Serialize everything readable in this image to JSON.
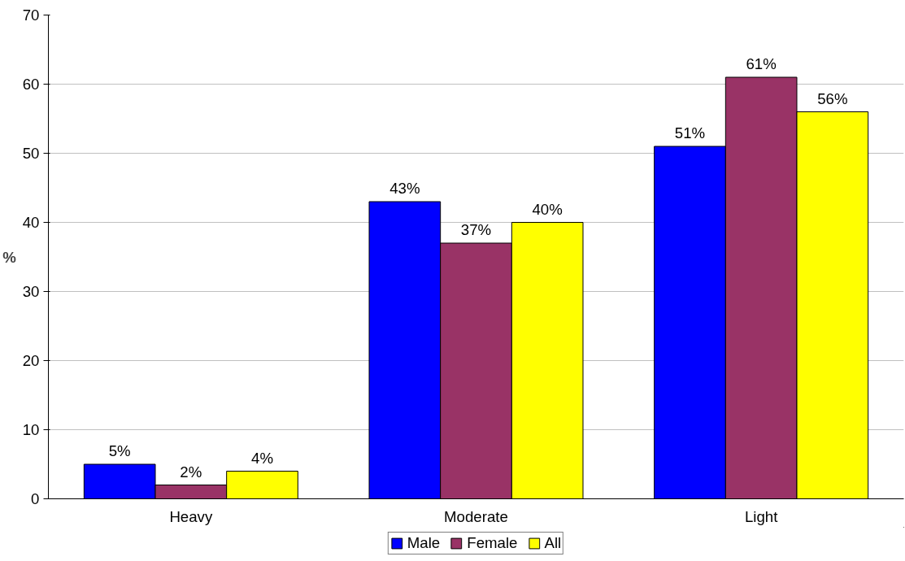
{
  "chart_data": {
    "type": "bar",
    "ylabel": "%",
    "categories": [
      "Heavy",
      "Moderate",
      "Light"
    ],
    "series": [
      {
        "name": "Male",
        "color": "#0000ff",
        "values": [
          5,
          43,
          51
        ],
        "value_labels": [
          "5%",
          "43%",
          "51%"
        ]
      },
      {
        "name": "Female",
        "color": "#993366",
        "values": [
          2,
          37,
          61
        ],
        "value_labels": [
          "2%",
          "37%",
          "61%"
        ]
      },
      {
        "name": "All",
        "color": "#ffff00",
        "values": [
          4,
          40,
          56
        ],
        "value_labels": [
          "4%",
          "40%",
          "56%"
        ]
      }
    ],
    "ylim": [
      0,
      70
    ],
    "yticks": [
      0,
      10,
      20,
      30,
      40,
      50,
      60,
      70
    ],
    "grid": "y",
    "legend": "bottom"
  }
}
